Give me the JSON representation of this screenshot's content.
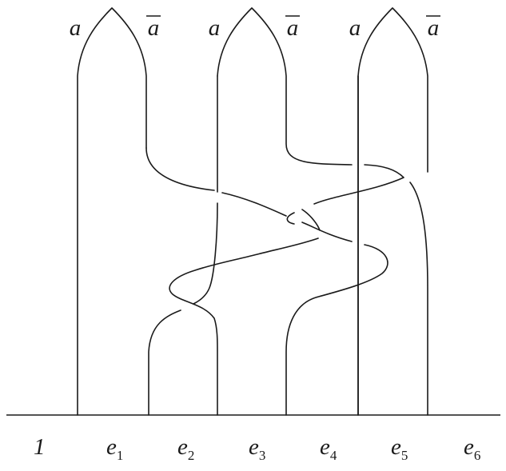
{
  "top_labels": [
    {
      "text": "a",
      "overline": false
    },
    {
      "text": "a",
      "overline": true
    },
    {
      "text": "a",
      "overline": false
    },
    {
      "text": "a",
      "overline": true
    },
    {
      "text": "a",
      "overline": false
    },
    {
      "text": "a",
      "overline": true
    }
  ],
  "bottom_labels": [
    {
      "base": "1",
      "sub": "",
      "italic": false
    },
    {
      "base": "e",
      "sub": "1",
      "italic": true
    },
    {
      "base": "e",
      "sub": "2",
      "italic": true
    },
    {
      "base": "e",
      "sub": "3",
      "italic": true
    },
    {
      "base": "e",
      "sub": "4",
      "italic": true
    },
    {
      "base": "e",
      "sub": "5",
      "italic": true
    },
    {
      "base": "e",
      "sub": "6",
      "italic": true
    }
  ]
}
